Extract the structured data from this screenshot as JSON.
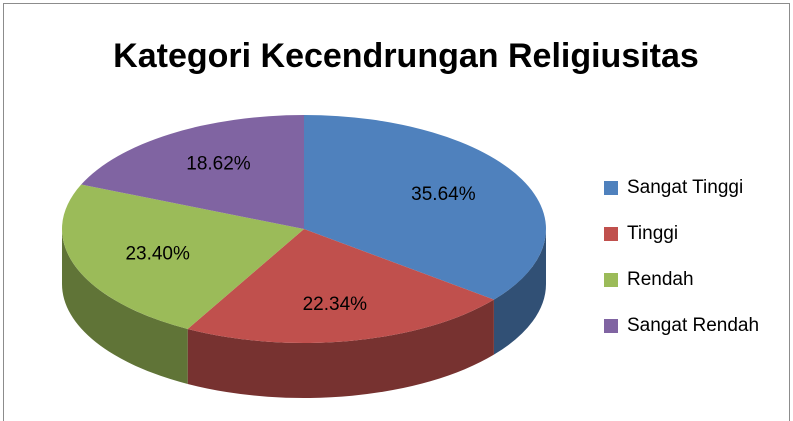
{
  "chart_data": {
    "type": "pie",
    "title": "Kategori Kecendrungan Religiusitas",
    "categories": [
      "Sangat Tinggi",
      "Tinggi",
      "Rendah",
      "Sangat Rendah"
    ],
    "values": [
      35.64,
      22.34,
      23.4,
      18.62
    ],
    "value_labels": [
      "35.64%",
      "22.34%",
      "23.40%",
      "18.62%"
    ],
    "colors": [
      "#4f81bd",
      "#c0504d",
      "#9bbb59",
      "#8064a2"
    ],
    "legend": "right",
    "three_d": true
  }
}
